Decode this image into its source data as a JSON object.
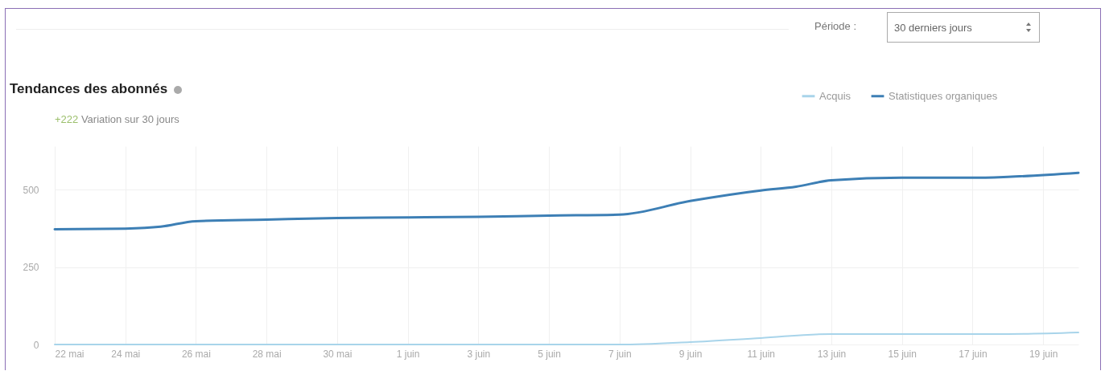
{
  "chart_data": {
    "type": "line",
    "title": "Tendances des abonnés",
    "subtitle": "+222 Variation sur 30 jours",
    "annotations": [
      "Période :",
      "30 derniers jours"
    ],
    "series": [
      {
        "name": "Acquis",
        "color": "#a8d4ea",
        "x": [
          "--05-22",
          "--06-07",
          "--06-09",
          "--06-11",
          "--06-13",
          "--06-15",
          "--06-17",
          "--06-18",
          "--06-20"
        ],
        "values": [
          0,
          0,
          8,
          21,
          34,
          34,
          34,
          34,
          39
        ]
      },
      {
        "name": "Statistiques organiques",
        "color": "#3d7fb5",
        "x": [
          "--05-22",
          "--05-24",
          "--05-25",
          "--05-26",
          "--05-28",
          "--05-30",
          "--06-01",
          "--06-03",
          "--06-05",
          "--06-07",
          "--06-09",
          "--06-11",
          "--06-12",
          "--06-13",
          "--06-15",
          "--06-17",
          "--06-18",
          "--06-20"
        ],
        "values": [
          372,
          374,
          380,
          398,
          403,
          408,
          410,
          412,
          416,
          419,
          463,
          497,
          509,
          530,
          538,
          538,
          541,
          554
        ]
      }
    ],
    "xlim": [
      "--05-22",
      "--06-20"
    ],
    "xticks": [
      {
        "value": "--05-22",
        "label": "22 mai"
      },
      {
        "value": "--05-24",
        "label": "24 mai"
      },
      {
        "value": "--05-26",
        "label": "26 mai"
      },
      {
        "value": "--05-28",
        "label": "28 mai"
      },
      {
        "value": "--05-30",
        "label": "30 mai"
      },
      {
        "value": "--06-01",
        "label": "1 juin"
      },
      {
        "value": "--06-03",
        "label": "3 juin"
      },
      {
        "value": "--06-05",
        "label": "5 juin"
      },
      {
        "value": "--06-07",
        "label": "7 juin"
      },
      {
        "value": "--06-09",
        "label": "9 juin"
      },
      {
        "value": "--06-11",
        "label": "11 juin"
      },
      {
        "value": "--06-13",
        "label": "13 juin"
      },
      {
        "value": "--06-15",
        "label": "15 juin"
      },
      {
        "value": "--06-17",
        "label": "17 juin"
      },
      {
        "value": "--06-19",
        "label": "19 juin"
      }
    ],
    "ylim": [
      0,
      640
    ],
    "yticks": [
      0,
      250,
      500
    ],
    "grid": true,
    "legend": "top right",
    "marker": "none",
    "line_style": "solid"
  }
}
